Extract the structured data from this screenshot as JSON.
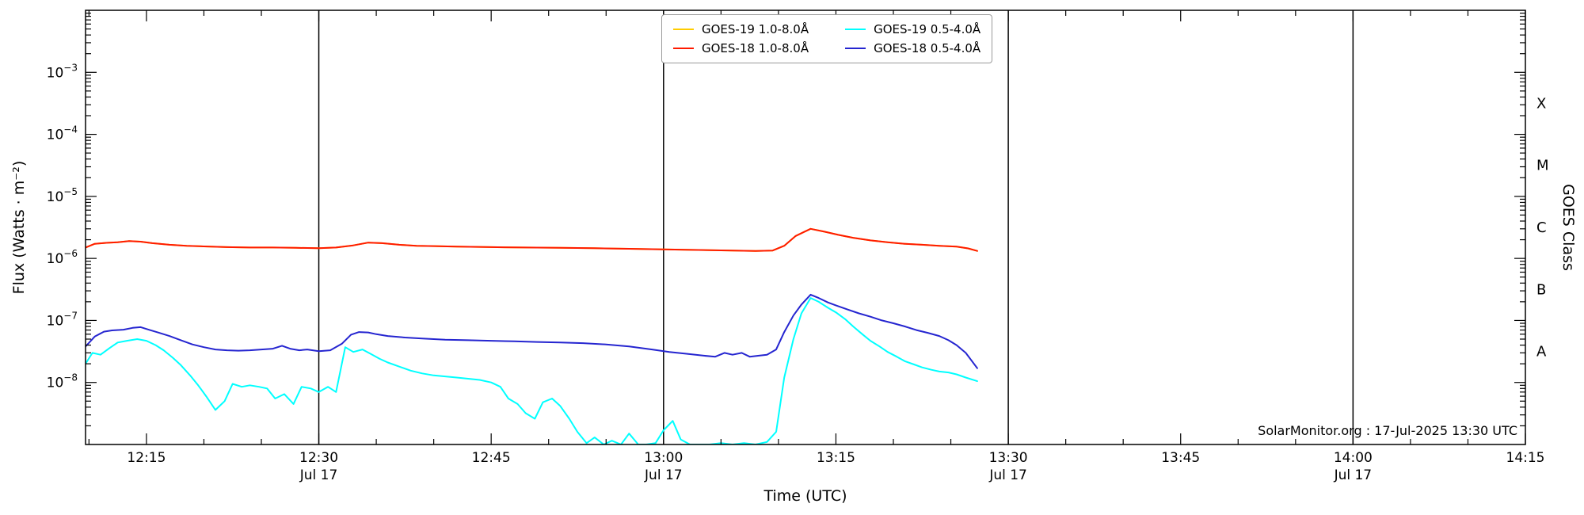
{
  "figure": {
    "background": "#ffffff",
    "watermark": "SolarMonitor.org : 17-Jul-2025 13:30 UTC"
  },
  "axes": {
    "xlabel": "Time (UTC)",
    "ylabel": "Flux (Watts · m⁻²)",
    "ylabel_right": "GOES Class",
    "x_range_minutes": [
      9.7,
      135
    ],
    "y_log_range": [
      -9,
      -2
    ],
    "x_minor_step_minutes": 5,
    "x_major_ticks": [
      {
        "t": 15,
        "label": "12:15"
      },
      {
        "t": 30,
        "label": "12:30",
        "sub": "Jul 17"
      },
      {
        "t": 45,
        "label": "12:45"
      },
      {
        "t": 60,
        "label": "13:00",
        "sub": "Jul 17"
      },
      {
        "t": 75,
        "label": "13:15"
      },
      {
        "t": 90,
        "label": "13:30",
        "sub": "Jul 17"
      },
      {
        "t": 105,
        "label": "13:45"
      },
      {
        "t": 120,
        "label": "14:00",
        "sub": "Jul 17"
      },
      {
        "t": 135,
        "label": "14:15"
      }
    ],
    "y_major_tick_exponents": [
      -3,
      -4,
      -5,
      -6,
      -7,
      -8
    ],
    "goes_classes": [
      {
        "label": "X",
        "log_flux": -3.5
      },
      {
        "label": "M",
        "log_flux": -4.5
      },
      {
        "label": "C",
        "log_flux": -5.5
      },
      {
        "label": "B",
        "log_flux": -6.5
      },
      {
        "label": "A",
        "log_flux": -7.5
      }
    ],
    "day_lines_minutes": [
      30,
      60,
      90,
      120
    ]
  },
  "legend": {
    "entries": [
      {
        "label": "GOES-19 1.0-8.0Å"
      },
      {
        "label": "GOES-18 1.0-8.0Å"
      },
      {
        "label": "GOES-19 0.5-4.0Å"
      },
      {
        "label": "GOES-18 0.5-4.0Å"
      }
    ]
  },
  "chart_data": {
    "type": "line",
    "xlabel": "Time (UTC)",
    "ylabel": "Flux (Watts · m⁻²)",
    "x_axis": {
      "unit": "minutes after 12:00 UTC, 17-Jul-2025",
      "start_label": "12:15",
      "end_label": "14:15"
    },
    "y_axis": {
      "scale": "log",
      "range": [
        1e-09,
        0.01
      ],
      "unit": "W m⁻²",
      "right_axis_classes": [
        "X",
        "M",
        "C",
        "B",
        "A"
      ]
    },
    "legend_position": "top-center",
    "grid": false,
    "series": [
      {
        "name": "GOES-19 1.0-8.0Å",
        "color": "#ffcc00",
        "points": [
          [
            9.7,
            1.5e-06
          ],
          [
            10.5,
            1.72e-06
          ],
          [
            11.5,
            1.78e-06
          ],
          [
            12.5,
            1.82e-06
          ],
          [
            13.5,
            1.9e-06
          ],
          [
            14.5,
            1.86e-06
          ],
          [
            15.5,
            1.76e-06
          ],
          [
            17,
            1.66e-06
          ],
          [
            18.5,
            1.6e-06
          ],
          [
            20,
            1.56e-06
          ],
          [
            22,
            1.52e-06
          ],
          [
            24,
            1.5e-06
          ],
          [
            26,
            1.5e-06
          ],
          [
            28,
            1.48e-06
          ],
          [
            30,
            1.46e-06
          ],
          [
            31.5,
            1.5e-06
          ],
          [
            33,
            1.62e-06
          ],
          [
            34.3,
            1.8e-06
          ],
          [
            35.5,
            1.76e-06
          ],
          [
            37,
            1.66e-06
          ],
          [
            38.5,
            1.6e-06
          ],
          [
            40,
            1.58e-06
          ],
          [
            42,
            1.55e-06
          ],
          [
            45,
            1.52e-06
          ],
          [
            48,
            1.5e-06
          ],
          [
            51,
            1.48e-06
          ],
          [
            54,
            1.46e-06
          ],
          [
            57,
            1.43e-06
          ],
          [
            60,
            1.4e-06
          ],
          [
            62,
            1.38e-06
          ],
          [
            64,
            1.36e-06
          ],
          [
            66,
            1.34e-06
          ],
          [
            68,
            1.32e-06
          ],
          [
            69.5,
            1.34e-06
          ],
          [
            70.5,
            1.6e-06
          ],
          [
            71.5,
            2.3e-06
          ],
          [
            72.8,
            3e-06
          ],
          [
            74,
            2.7e-06
          ],
          [
            75.2,
            2.4e-06
          ],
          [
            76.5,
            2.15e-06
          ],
          [
            78,
            1.95e-06
          ],
          [
            79.5,
            1.82e-06
          ],
          [
            81,
            1.72e-06
          ],
          [
            82.5,
            1.66e-06
          ],
          [
            84,
            1.6e-06
          ],
          [
            85.5,
            1.55e-06
          ],
          [
            86.5,
            1.45e-06
          ],
          [
            87.3,
            1.32e-06
          ]
        ]
      },
      {
        "name": "GOES-18 1.0-8.0Å",
        "color": "#ff1a00",
        "points": [
          [
            9.7,
            1.5e-06
          ],
          [
            10.5,
            1.72e-06
          ],
          [
            11.5,
            1.78e-06
          ],
          [
            12.5,
            1.82e-06
          ],
          [
            13.5,
            1.9e-06
          ],
          [
            14.5,
            1.86e-06
          ],
          [
            15.5,
            1.76e-06
          ],
          [
            17,
            1.66e-06
          ],
          [
            18.5,
            1.6e-06
          ],
          [
            20,
            1.56e-06
          ],
          [
            22,
            1.52e-06
          ],
          [
            24,
            1.5e-06
          ],
          [
            26,
            1.5e-06
          ],
          [
            28,
            1.48e-06
          ],
          [
            30,
            1.46e-06
          ],
          [
            31.5,
            1.5e-06
          ],
          [
            33,
            1.62e-06
          ],
          [
            34.3,
            1.8e-06
          ],
          [
            35.5,
            1.76e-06
          ],
          [
            37,
            1.66e-06
          ],
          [
            38.5,
            1.6e-06
          ],
          [
            40,
            1.58e-06
          ],
          [
            42,
            1.55e-06
          ],
          [
            45,
            1.52e-06
          ],
          [
            48,
            1.5e-06
          ],
          [
            51,
            1.48e-06
          ],
          [
            54,
            1.46e-06
          ],
          [
            57,
            1.43e-06
          ],
          [
            60,
            1.4e-06
          ],
          [
            62,
            1.38e-06
          ],
          [
            64,
            1.36e-06
          ],
          [
            66,
            1.34e-06
          ],
          [
            68,
            1.32e-06
          ],
          [
            69.5,
            1.34e-06
          ],
          [
            70.5,
            1.6e-06
          ],
          [
            71.5,
            2.3e-06
          ],
          [
            72.8,
            3e-06
          ],
          [
            74,
            2.7e-06
          ],
          [
            75.2,
            2.4e-06
          ],
          [
            76.5,
            2.15e-06
          ],
          [
            78,
            1.95e-06
          ],
          [
            79.5,
            1.82e-06
          ],
          [
            81,
            1.72e-06
          ],
          [
            82.5,
            1.66e-06
          ],
          [
            84,
            1.6e-06
          ],
          [
            85.5,
            1.55e-06
          ],
          [
            86.5,
            1.45e-06
          ],
          [
            87.3,
            1.32e-06
          ]
        ]
      },
      {
        "name": "GOES-19 0.5-4.0Å",
        "color": "#00ffff",
        "points": [
          [
            9.7,
            2e-08
          ],
          [
            10.3,
            3e-08
          ],
          [
            11,
            2.8e-08
          ],
          [
            11.8,
            3.6e-08
          ],
          [
            12.5,
            4.4e-08
          ],
          [
            13.3,
            4.7e-08
          ],
          [
            14.2,
            5e-08
          ],
          [
            15,
            4.7e-08
          ],
          [
            15.8,
            4e-08
          ],
          [
            16.5,
            3.3e-08
          ],
          [
            17.3,
            2.5e-08
          ],
          [
            18,
            1.9e-08
          ],
          [
            18.8,
            1.3e-08
          ],
          [
            19.5,
            9e-09
          ],
          [
            20.2,
            6e-09
          ],
          [
            21,
            3.6e-09
          ],
          [
            21.8,
            5e-09
          ],
          [
            22.5,
            9.5e-09
          ],
          [
            23.3,
            8.5e-09
          ],
          [
            24,
            9e-09
          ],
          [
            24.8,
            8.5e-09
          ],
          [
            25.5,
            8e-09
          ],
          [
            26.2,
            5.5e-09
          ],
          [
            27,
            6.5e-09
          ],
          [
            27.8,
            4.5e-09
          ],
          [
            28.5,
            8.5e-09
          ],
          [
            29.3,
            8e-09
          ],
          [
            30,
            7e-09
          ],
          [
            30.8,
            8.5e-09
          ],
          [
            31.5,
            7e-09
          ],
          [
            32.3,
            3.7e-08
          ],
          [
            33,
            3.1e-08
          ],
          [
            33.8,
            3.4e-08
          ],
          [
            34.5,
            2.9e-08
          ],
          [
            35.3,
            2.4e-08
          ],
          [
            36,
            2.1e-08
          ],
          [
            37,
            1.8e-08
          ],
          [
            38,
            1.55e-08
          ],
          [
            39,
            1.4e-08
          ],
          [
            40,
            1.3e-08
          ],
          [
            41,
            1.25e-08
          ],
          [
            42,
            1.2e-08
          ],
          [
            43,
            1.15e-08
          ],
          [
            44,
            1.1e-08
          ],
          [
            45,
            1e-08
          ],
          [
            45.8,
            8.5e-09
          ],
          [
            46.5,
            5.5e-09
          ],
          [
            47.3,
            4.5e-09
          ],
          [
            48,
            3.2e-09
          ],
          [
            48.8,
            2.6e-09
          ],
          [
            49.5,
            4.8e-09
          ],
          [
            50.3,
            5.5e-09
          ],
          [
            51,
            4.2e-09
          ],
          [
            51.8,
            2.6e-09
          ],
          [
            52.5,
            1.6e-09
          ],
          [
            53.3,
            1.05e-09
          ],
          [
            54,
            1.3e-09
          ],
          [
            54.8,
            1e-09
          ],
          [
            55.5,
            1.15e-09
          ],
          [
            56.3,
            1e-09
          ],
          [
            57,
            1.5e-09
          ],
          [
            57.8,
            1e-09
          ],
          [
            58.5,
            1e-09
          ],
          [
            59.3,
            1.05e-09
          ],
          [
            60,
            1.7e-09
          ],
          [
            60.8,
            2.4e-09
          ],
          [
            61.5,
            1.2e-09
          ],
          [
            62.3,
            1e-09
          ],
          [
            63,
            1e-09
          ],
          [
            64,
            1e-09
          ],
          [
            65,
            1.05e-09
          ],
          [
            66,
            1e-09
          ],
          [
            67,
            1.05e-09
          ],
          [
            68,
            1e-09
          ],
          [
            69,
            1.1e-09
          ],
          [
            69.8,
            1.6e-09
          ],
          [
            70.5,
            1.2e-08
          ],
          [
            71.3,
            5e-08
          ],
          [
            72,
            1.3e-07
          ],
          [
            72.8,
            2.3e-07
          ],
          [
            73.5,
            2e-07
          ],
          [
            74.3,
            1.6e-07
          ],
          [
            75,
            1.35e-07
          ],
          [
            75.8,
            1.05e-07
          ],
          [
            76.5,
            8e-08
          ],
          [
            77.3,
            6e-08
          ],
          [
            78,
            4.7e-08
          ],
          [
            78.8,
            3.8e-08
          ],
          [
            79.5,
            3.1e-08
          ],
          [
            80.3,
            2.6e-08
          ],
          [
            81,
            2.2e-08
          ],
          [
            81.8,
            1.95e-08
          ],
          [
            82.5,
            1.75e-08
          ],
          [
            83.3,
            1.6e-08
          ],
          [
            84,
            1.5e-08
          ],
          [
            84.8,
            1.45e-08
          ],
          [
            85.5,
            1.35e-08
          ],
          [
            86.3,
            1.2e-08
          ],
          [
            87.3,
            1.05e-08
          ]
        ]
      },
      {
        "name": "GOES-18 0.5-4.0Å",
        "color": "#2525d0",
        "points": [
          [
            9.7,
            3.8e-08
          ],
          [
            10.5,
            5.5e-08
          ],
          [
            11.3,
            6.6e-08
          ],
          [
            12,
            6.9e-08
          ],
          [
            13,
            7.1e-08
          ],
          [
            13.8,
            7.6e-08
          ],
          [
            14.5,
            7.8e-08
          ],
          [
            15.3,
            7e-08
          ],
          [
            16,
            6.4e-08
          ],
          [
            17,
            5.6e-08
          ],
          [
            18,
            4.8e-08
          ],
          [
            19,
            4.1e-08
          ],
          [
            20,
            3.7e-08
          ],
          [
            21,
            3.4e-08
          ],
          [
            22,
            3.3e-08
          ],
          [
            23,
            3.25e-08
          ],
          [
            24,
            3.3e-08
          ],
          [
            25,
            3.4e-08
          ],
          [
            26,
            3.5e-08
          ],
          [
            26.8,
            3.9e-08
          ],
          [
            27.5,
            3.5e-08
          ],
          [
            28.3,
            3.3e-08
          ],
          [
            29,
            3.4e-08
          ],
          [
            30,
            3.2e-08
          ],
          [
            31,
            3.3e-08
          ],
          [
            32,
            4.2e-08
          ],
          [
            32.8,
            5.9e-08
          ],
          [
            33.5,
            6.5e-08
          ],
          [
            34.3,
            6.4e-08
          ],
          [
            35,
            6e-08
          ],
          [
            36,
            5.6e-08
          ],
          [
            37.5,
            5.3e-08
          ],
          [
            39,
            5.1e-08
          ],
          [
            41,
            4.9e-08
          ],
          [
            43,
            4.8e-08
          ],
          [
            45,
            4.7e-08
          ],
          [
            47,
            4.6e-08
          ],
          [
            49,
            4.5e-08
          ],
          [
            51,
            4.4e-08
          ],
          [
            53,
            4.3e-08
          ],
          [
            55,
            4.1e-08
          ],
          [
            57,
            3.8e-08
          ],
          [
            59,
            3.4e-08
          ],
          [
            60.5,
            3.1e-08
          ],
          [
            62,
            2.9e-08
          ],
          [
            63.5,
            2.7e-08
          ],
          [
            64.5,
            2.6e-08
          ],
          [
            65.3,
            3e-08
          ],
          [
            66,
            2.8e-08
          ],
          [
            66.8,
            3e-08
          ],
          [
            67.5,
            2.6e-08
          ],
          [
            68.3,
            2.7e-08
          ],
          [
            69,
            2.8e-08
          ],
          [
            69.8,
            3.4e-08
          ],
          [
            70.5,
            6.5e-08
          ],
          [
            71.3,
            1.2e-07
          ],
          [
            72,
            1.8e-07
          ],
          [
            72.8,
            2.6e-07
          ],
          [
            73.5,
            2.3e-07
          ],
          [
            74.3,
            1.95e-07
          ],
          [
            75,
            1.75e-07
          ],
          [
            76,
            1.5e-07
          ],
          [
            77,
            1.3e-07
          ],
          [
            78,
            1.15e-07
          ],
          [
            79,
            1e-07
          ],
          [
            80,
            9e-08
          ],
          [
            81,
            8e-08
          ],
          [
            82,
            7e-08
          ],
          [
            83,
            6.3e-08
          ],
          [
            84,
            5.6e-08
          ],
          [
            84.8,
            4.8e-08
          ],
          [
            85.5,
            4e-08
          ],
          [
            86.3,
            3e-08
          ],
          [
            87.3,
            1.7e-08
          ]
        ]
      }
    ]
  }
}
